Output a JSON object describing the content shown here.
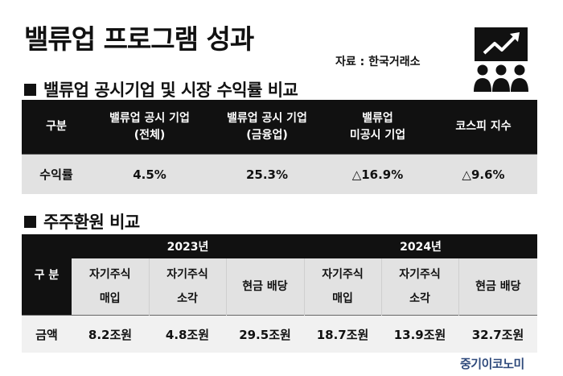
{
  "title": "밸류업 프로그램 성과",
  "source": "자료 : 한국거래소",
  "icons": {
    "presentation": "chart-presentation-icon"
  },
  "section1": {
    "heading": "밸류업 공시기업 및 시장 수익률 비교",
    "headers": [
      {
        "line1": "구분",
        "line2": ""
      },
      {
        "line1": "밸류업 공시 기업",
        "line2": "(전체)"
      },
      {
        "line1": "밸류업 공시 기업",
        "line2": "(금융업)"
      },
      {
        "line1": "밸류업",
        "line2": "미공시 기업"
      },
      {
        "line1": "코스피 지수",
        "line2": ""
      }
    ],
    "row": [
      "수익률",
      "4.5%",
      "25.3%",
      "△16.9%",
      "△9.6%"
    ]
  },
  "section2": {
    "heading": "주주환원 비교",
    "gubun": "구 분",
    "years": [
      "2023년",
      "2024년"
    ],
    "sub_headers": [
      {
        "line1": "자기주식",
        "line2": "매입"
      },
      {
        "line1": "자기주식",
        "line2": "소각"
      },
      {
        "line1": "현금 배당",
        "line2": ""
      },
      {
        "line1": "자기주식",
        "line2": "매입"
      },
      {
        "line1": "자기주식",
        "line2": "소각"
      },
      {
        "line1": "현금 배당",
        "line2": ""
      }
    ],
    "row_label": "금액",
    "values": [
      "8.2조원",
      "4.8조원",
      "29.5조원",
      "18.7조원",
      "13.9조원",
      "32.7조원"
    ]
  },
  "watermark": "중기이코노미"
}
